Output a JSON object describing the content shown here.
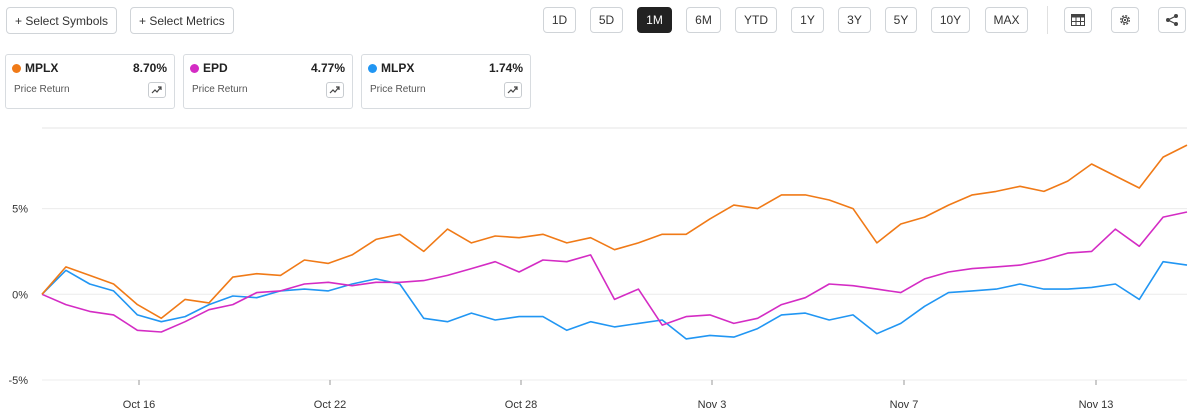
{
  "toolbar": {
    "select_symbols": "+ Select Symbols",
    "select_metrics": "+ Select Metrics",
    "ranges": [
      "1D",
      "5D",
      "1M",
      "6M",
      "YTD",
      "1Y",
      "3Y",
      "5Y",
      "10Y",
      "MAX"
    ],
    "active_range": "1M",
    "icons": [
      "table-icon",
      "gear-icon",
      "share-icon"
    ]
  },
  "legend": [
    {
      "symbol": "MPLX",
      "value": "8.70%",
      "label": "Price Return",
      "color": "#f07a17"
    },
    {
      "symbol": "EPD",
      "value": "4.77%",
      "label": "Price Return",
      "color": "#d42cc4"
    },
    {
      "symbol": "MLPX",
      "value": "1.74%",
      "label": "Price Return",
      "color": "#2196f3"
    }
  ],
  "chart_data": {
    "type": "line",
    "x_ticks": [
      "Oct 16",
      "Oct 22",
      "Oct 28",
      "Nov 3",
      "Nov 7",
      "Nov 13"
    ],
    "y_ticks": [
      "5%",
      "0%",
      "-5%"
    ],
    "ylim": [
      -5,
      9.7
    ],
    "grid": "horizontal",
    "series": [
      {
        "name": "MPLX",
        "color": "#f07a17",
        "values": [
          0.0,
          1.6,
          1.1,
          0.6,
          -0.6,
          -1.4,
          -0.3,
          -0.5,
          1.0,
          1.2,
          1.1,
          2.0,
          1.8,
          2.3,
          3.2,
          3.5,
          2.5,
          3.8,
          3.0,
          3.4,
          3.3,
          3.5,
          3.0,
          3.3,
          2.6,
          3.0,
          3.5,
          3.5,
          4.4,
          5.2,
          5.0,
          5.8,
          5.8,
          5.5,
          5.0,
          3.0,
          4.1,
          4.5,
          5.2,
          5.8,
          6.0,
          6.3,
          6.0,
          6.6,
          7.6,
          6.9,
          6.2,
          8.0,
          8.7
        ]
      },
      {
        "name": "EPD",
        "color": "#d42cc4",
        "values": [
          0.0,
          -0.6,
          -1.0,
          -1.2,
          -2.1,
          -2.2,
          -1.6,
          -0.9,
          -0.6,
          0.1,
          0.2,
          0.6,
          0.7,
          0.5,
          0.7,
          0.7,
          0.8,
          1.1,
          1.5,
          1.9,
          1.3,
          2.0,
          1.9,
          2.3,
          -0.3,
          0.3,
          -1.8,
          -1.3,
          -1.2,
          -1.7,
          -1.4,
          -0.6,
          -0.2,
          0.6,
          0.5,
          0.3,
          0.1,
          0.9,
          1.3,
          1.5,
          1.6,
          1.7,
          2.0,
          2.4,
          2.5,
          3.8,
          2.8,
          4.5,
          4.8
        ]
      },
      {
        "name": "MLPX",
        "color": "#2196f3",
        "values": [
          0.0,
          1.4,
          0.6,
          0.2,
          -1.2,
          -1.6,
          -1.3,
          -0.6,
          -0.1,
          -0.2,
          0.2,
          0.3,
          0.2,
          0.6,
          0.9,
          0.6,
          -1.4,
          -1.6,
          -1.1,
          -1.5,
          -1.3,
          -1.3,
          -2.1,
          -1.6,
          -1.9,
          -1.7,
          -1.5,
          -2.6,
          -2.4,
          -2.5,
          -2.0,
          -1.2,
          -1.1,
          -1.5,
          -1.2,
          -2.3,
          -1.7,
          -0.7,
          0.1,
          0.2,
          0.3,
          0.6,
          0.3,
          0.3,
          0.4,
          0.6,
          -0.3,
          1.9,
          1.7
        ]
      }
    ]
  }
}
